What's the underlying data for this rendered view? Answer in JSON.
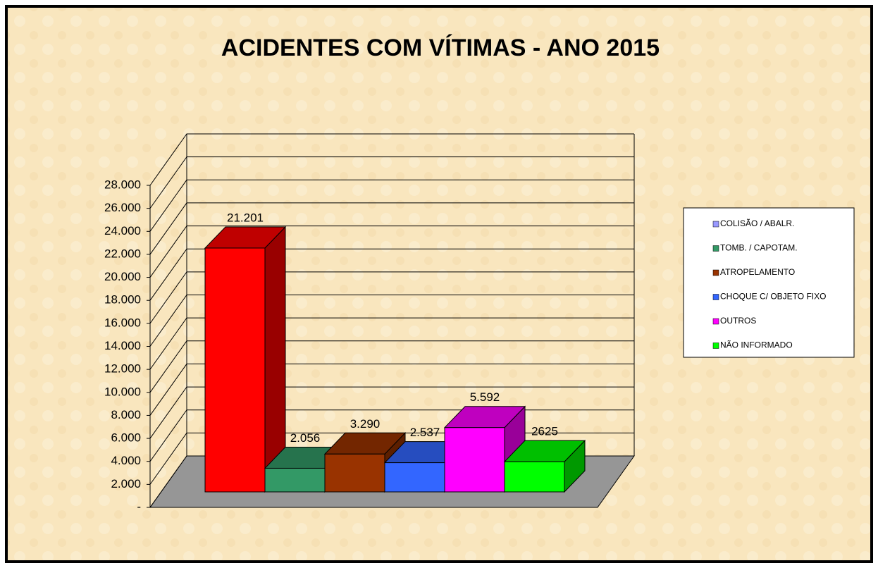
{
  "chart_data": {
    "type": "bar3d",
    "title": "ACIDENTES COM VÍTIMAS - ANO 2015",
    "categories": [
      "COLISÃO / ABALR.",
      "TOMB. / CAPOTAM.",
      "ATROPELAMENTO",
      "CHOQUE C/ OBJETO FIXO",
      "OUTROS",
      "NÃO INFORMADO"
    ],
    "values": [
      21201,
      2056,
      3290,
      2537,
      5592,
      2625
    ],
    "value_labels": [
      "21.201",
      "2.056",
      "3.290",
      "2.537",
      "5.592",
      "2625"
    ],
    "colors": [
      "#ff0000",
      "#339966",
      "#993300",
      "#3366ff",
      "#ff00ff",
      "#00ff00"
    ],
    "legend_colors": [
      "#9999ff",
      "#339966",
      "#993300",
      "#3366ff",
      "#ff00ff",
      "#00ff00"
    ],
    "ylim": [
      0,
      28000
    ],
    "yticks": [
      {
        "value": 0,
        "label": "-"
      },
      {
        "value": 2000,
        "label": "2.000"
      },
      {
        "value": 4000,
        "label": "4.000"
      },
      {
        "value": 6000,
        "label": "6.000"
      },
      {
        "value": 8000,
        "label": "8.000"
      },
      {
        "value": 10000,
        "label": "10.000"
      },
      {
        "value": 12000,
        "label": "12.000"
      },
      {
        "value": 14000,
        "label": "14.000"
      },
      {
        "value": 16000,
        "label": "16.000"
      },
      {
        "value": 18000,
        "label": "18.000"
      },
      {
        "value": 20000,
        "label": "20.000"
      },
      {
        "value": 22000,
        "label": "22.000"
      },
      {
        "value": 24000,
        "label": "24.000"
      },
      {
        "value": 26000,
        "label": "26.000"
      },
      {
        "value": 28000,
        "label": "28.000"
      }
    ],
    "grid": true,
    "legend": "right"
  }
}
